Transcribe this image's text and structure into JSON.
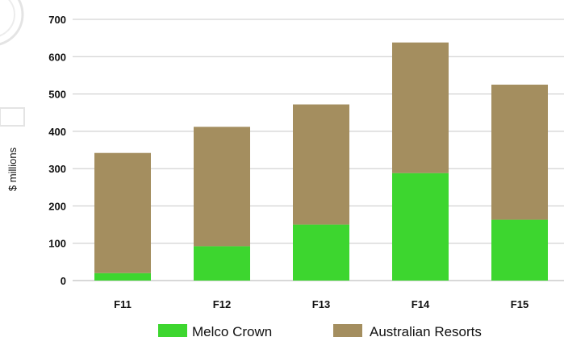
{
  "chart_data": {
    "type": "bar",
    "stacked": true,
    "categories": [
      "F11",
      "F12",
      "F13",
      "F14",
      "F15"
    ],
    "series": [
      {
        "name": "Melco Crown",
        "color": "#3dd62f",
        "values": [
          20,
          92,
          150,
          288,
          163
        ]
      },
      {
        "name": "Australian Resorts",
        "color": "#a48e5f",
        "values": [
          322,
          320,
          322,
          350,
          362
        ]
      }
    ],
    "ylabel": "$ millions",
    "ylim": [
      0,
      700
    ],
    "yticks": [
      0,
      100,
      200,
      300,
      400,
      500,
      600,
      700
    ],
    "grid": true,
    "legend_position": "bottom"
  }
}
